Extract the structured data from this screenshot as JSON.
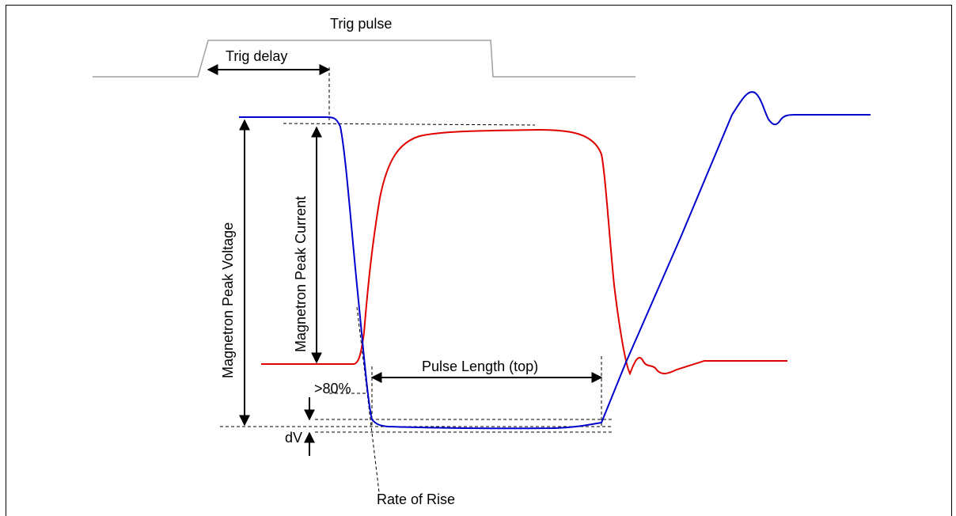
{
  "labels": {
    "trig_pulse": "Trig pulse",
    "trig_delay": "Trig delay",
    "magnetron_peak_voltage": "Magnetron Peak Voltage",
    "magnetron_peak_current": "Magnetron Peak Current",
    "pulse_length_top": "Pulse Length (top)",
    "gt_80_percent": ">80%",
    "dv": "dV",
    "rate_of_rise": "Rate of Rise"
  },
  "colors": {
    "voltage_trace": "#0000cc",
    "current_trace": "#e00000",
    "trigger_trace": "#a0a0a0",
    "annotation": "#000000"
  }
}
